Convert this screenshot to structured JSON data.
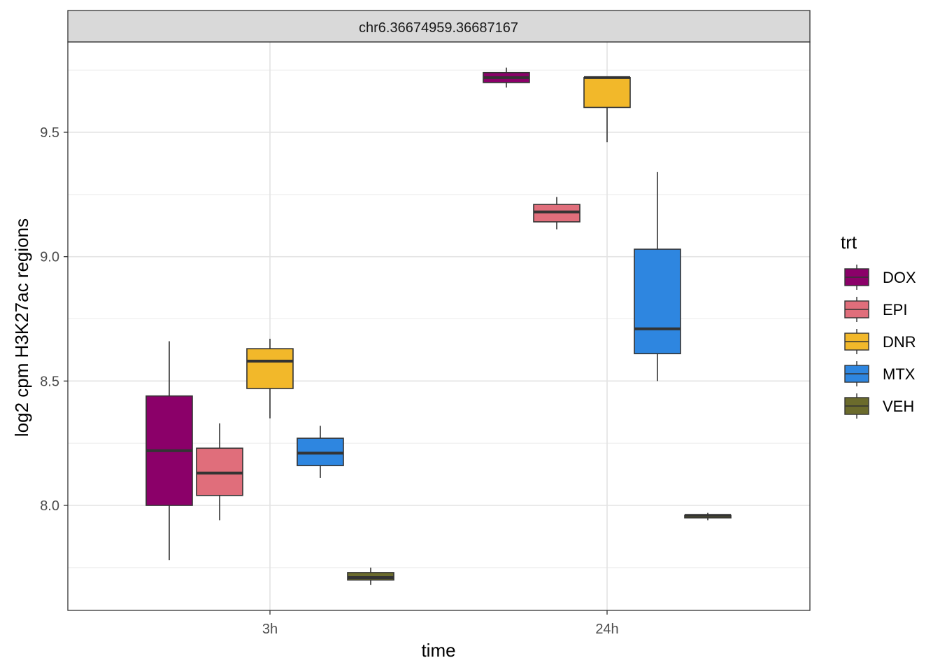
{
  "chart_data": {
    "type": "boxplot",
    "facet_label": "chr6.36674959.36687167",
    "xlabel": "time",
    "ylabel": "log2 cpm H3K27ac regions",
    "categories": [
      "3h",
      "24h"
    ],
    "ylim": [
      7.6,
      9.85
    ],
    "yticks": [
      8.0,
      8.5,
      9.0,
      9.5
    ],
    "ytick_labels": [
      "8.0",
      "8.5",
      "9.0",
      "9.5"
    ],
    "grid": true,
    "legend": {
      "title": "trt",
      "position": "right",
      "entries": [
        "DOX",
        "EPI",
        "DNR",
        "MTX",
        "VEH"
      ]
    },
    "series": [
      {
        "name": "DOX",
        "color": "#8B0069",
        "boxes": [
          {
            "x": "3h",
            "min": 7.78,
            "q1": 8.0,
            "median": 8.22,
            "q3": 8.44,
            "max": 8.66
          },
          {
            "x": "24h",
            "min": 9.68,
            "q1": 9.7,
            "median": 9.72,
            "q3": 9.74,
            "max": 9.76
          }
        ]
      },
      {
        "name": "EPI",
        "color": "#E06E7B",
        "boxes": [
          {
            "x": "3h",
            "min": 7.94,
            "q1": 8.04,
            "median": 8.13,
            "q3": 8.23,
            "max": 8.33
          },
          {
            "x": "24h",
            "min": 9.11,
            "q1": 9.14,
            "median": 9.18,
            "q3": 9.21,
            "max": 9.24
          }
        ]
      },
      {
        "name": "DNR",
        "color": "#F2B82A",
        "boxes": [
          {
            "x": "3h",
            "min": 8.35,
            "q1": 8.47,
            "median": 8.58,
            "q3": 8.63,
            "max": 8.67
          },
          {
            "x": "24h",
            "min": 9.46,
            "q1": 9.6,
            "median": 9.72,
            "q3": 9.72,
            "max": 9.72
          }
        ]
      },
      {
        "name": "MTX",
        "color": "#2E86E0",
        "boxes": [
          {
            "x": "3h",
            "min": 8.11,
            "q1": 8.16,
            "median": 8.21,
            "q3": 8.27,
            "max": 8.32
          },
          {
            "x": "24h",
            "min": 8.5,
            "q1": 8.61,
            "median": 8.71,
            "q3": 9.03,
            "max": 9.34
          }
        ]
      },
      {
        "name": "VEH",
        "color": "#6B6B2C",
        "boxes": [
          {
            "x": "3h",
            "min": 7.68,
            "q1": 7.7,
            "median": 7.71,
            "q3": 7.73,
            "max": 7.75
          },
          {
            "x": "24h",
            "min": 7.94,
            "q1": 7.95,
            "median": 7.96,
            "q3": 7.96,
            "max": 7.97
          }
        ]
      }
    ]
  }
}
